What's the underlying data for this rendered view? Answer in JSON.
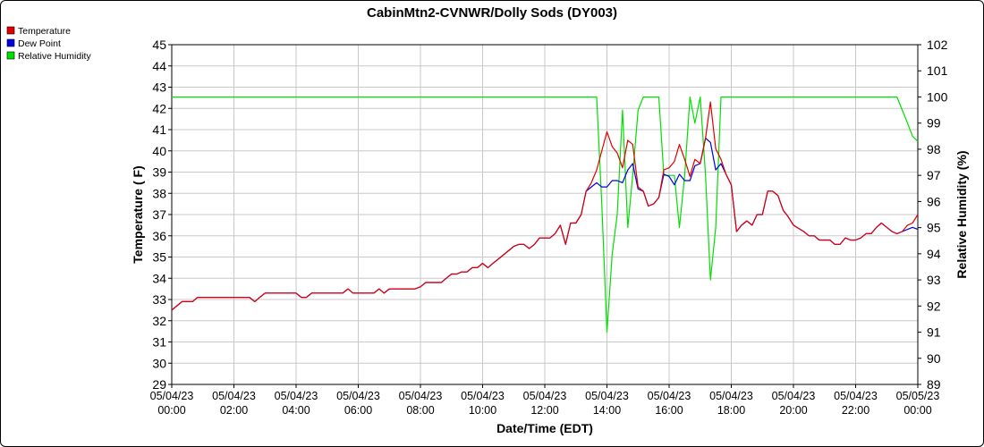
{
  "chart_data": {
    "type": "line",
    "title": "CabinMtn2-CVNWR/Dolly Sods (DY003)",
    "xlabel": "Date/Time (EDT)",
    "ylabel": "Temperature ( F)",
    "y2label": "Relative Humidity (%)",
    "x_range_hours": [
      0,
      24
    ],
    "ylim": [
      29,
      45
    ],
    "y2lim": [
      89,
      102
    ],
    "grid": true,
    "legend_position": "top-left",
    "x_ticks": [
      {
        "h": 0,
        "date": "05/04/23",
        "time": "00:00"
      },
      {
        "h": 2,
        "date": "05/04/23",
        "time": "02:00"
      },
      {
        "h": 4,
        "date": "05/04/23",
        "time": "04:00"
      },
      {
        "h": 6,
        "date": "05/04/23",
        "time": "06:00"
      },
      {
        "h": 8,
        "date": "05/04/23",
        "time": "08:00"
      },
      {
        "h": 10,
        "date": "05/04/23",
        "time": "10:00"
      },
      {
        "h": 12,
        "date": "05/04/23",
        "time": "12:00"
      },
      {
        "h": 14,
        "date": "05/04/23",
        "time": "14:00"
      },
      {
        "h": 16,
        "date": "05/04/23",
        "time": "16:00"
      },
      {
        "h": 18,
        "date": "05/04/23",
        "time": "18:00"
      },
      {
        "h": 20,
        "date": "05/04/23",
        "time": "20:00"
      },
      {
        "h": 22,
        "date": "05/04/23",
        "time": "22:00"
      },
      {
        "h": 24,
        "date": "05/05/23",
        "time": "00:00"
      }
    ],
    "y_ticks": [
      "29",
      "30",
      "31",
      "32",
      "33",
      "34",
      "35",
      "36",
      "37",
      "38",
      "39",
      "40",
      "41",
      "42",
      "43",
      "44",
      "45"
    ],
    "y2_ticks": [
      "89",
      "90",
      "91",
      "92",
      "93",
      "94",
      "95",
      "96",
      "97",
      "98",
      "99",
      "100",
      "101",
      "102"
    ],
    "series": [
      {
        "name": "Temperature",
        "color": "#e00000",
        "axis": "left",
        "points": [
          [
            0,
            32.5
          ],
          [
            0.33,
            32.9
          ],
          [
            0.67,
            32.9
          ],
          [
            0.83,
            33.1
          ],
          [
            2,
            33.1
          ],
          [
            2.17,
            33.1
          ],
          [
            2.5,
            33.1
          ],
          [
            2.67,
            32.9
          ],
          [
            2.83,
            33.1
          ],
          [
            3,
            33.3
          ],
          [
            3.5,
            33.3
          ],
          [
            4,
            33.3
          ],
          [
            4.17,
            33.1
          ],
          [
            4.33,
            33.1
          ],
          [
            4.5,
            33.3
          ],
          [
            5,
            33.3
          ],
          [
            5.5,
            33.3
          ],
          [
            5.67,
            33.5
          ],
          [
            5.83,
            33.3
          ],
          [
            6,
            33.3
          ],
          [
            6.5,
            33.3
          ],
          [
            6.67,
            33.5
          ],
          [
            6.83,
            33.3
          ],
          [
            7,
            33.5
          ],
          [
            7.5,
            33.5
          ],
          [
            7.83,
            33.5
          ],
          [
            8,
            33.6
          ],
          [
            8.17,
            33.8
          ],
          [
            8.5,
            33.8
          ],
          [
            8.67,
            33.8
          ],
          [
            8.83,
            34
          ],
          [
            9,
            34.2
          ],
          [
            9.17,
            34.2
          ],
          [
            9.33,
            34.3
          ],
          [
            9.5,
            34.3
          ],
          [
            9.67,
            34.5
          ],
          [
            9.83,
            34.5
          ],
          [
            10,
            34.7
          ],
          [
            10.17,
            34.5
          ],
          [
            10.33,
            34.7
          ],
          [
            10.67,
            35.1
          ],
          [
            11,
            35.5
          ],
          [
            11.17,
            35.6
          ],
          [
            11.33,
            35.6
          ],
          [
            11.5,
            35.4
          ],
          [
            11.67,
            35.6
          ],
          [
            11.83,
            35.9
          ],
          [
            12,
            35.9
          ],
          [
            12.17,
            35.9
          ],
          [
            12.33,
            36.1
          ],
          [
            12.5,
            36.5
          ],
          [
            12.67,
            35.6
          ],
          [
            12.83,
            36.6
          ],
          [
            13,
            36.6
          ],
          [
            13.17,
            37
          ],
          [
            13.33,
            38.1
          ],
          [
            13.5,
            38.5
          ],
          [
            13.67,
            39.1
          ],
          [
            14,
            40.9
          ],
          [
            14.17,
            40.2
          ],
          [
            14.33,
            39.9
          ],
          [
            14.5,
            39.2
          ],
          [
            14.67,
            40.5
          ],
          [
            14.83,
            40.3
          ],
          [
            15,
            38.3
          ],
          [
            15.17,
            38.1
          ],
          [
            15.33,
            37.4
          ],
          [
            15.5,
            37.5
          ],
          [
            15.67,
            37.8
          ],
          [
            15.83,
            39.1
          ],
          [
            16,
            39.2
          ],
          [
            16.17,
            39.5
          ],
          [
            16.33,
            40.3
          ],
          [
            16.5,
            39.6
          ],
          [
            16.67,
            38.8
          ],
          [
            16.83,
            39.6
          ],
          [
            17,
            39.4
          ],
          [
            17.17,
            40.6
          ],
          [
            17.33,
            42.3
          ],
          [
            17.5,
            40.1
          ],
          [
            17.67,
            39.6
          ],
          [
            17.83,
            38.9
          ],
          [
            18,
            38.4
          ],
          [
            18.17,
            36.2
          ],
          [
            18.33,
            36.5
          ],
          [
            18.5,
            36.7
          ],
          [
            18.67,
            36.5
          ],
          [
            18.83,
            37
          ],
          [
            19,
            37
          ],
          [
            19.17,
            38.1
          ],
          [
            19.33,
            38.1
          ],
          [
            19.5,
            37.9
          ],
          [
            19.67,
            37.2
          ],
          [
            19.83,
            36.9
          ],
          [
            20,
            36.5
          ],
          [
            20.33,
            36.2
          ],
          [
            20.5,
            36
          ],
          [
            20.67,
            36
          ],
          [
            20.83,
            35.8
          ],
          [
            21,
            35.8
          ],
          [
            21.17,
            35.8
          ],
          [
            21.33,
            35.6
          ],
          [
            21.5,
            35.6
          ],
          [
            21.67,
            35.9
          ],
          [
            21.83,
            35.8
          ],
          [
            22,
            35.8
          ],
          [
            22.17,
            35.9
          ],
          [
            22.33,
            36.1
          ],
          [
            22.5,
            36.1
          ],
          [
            22.67,
            36.4
          ],
          [
            22.83,
            36.6
          ],
          [
            23,
            36.4
          ],
          [
            23.17,
            36.2
          ],
          [
            23.33,
            36.1
          ],
          [
            23.5,
            36.2
          ],
          [
            23.67,
            36.5
          ],
          [
            23.83,
            36.6
          ],
          [
            24,
            37
          ]
        ]
      },
      {
        "name": "Dew Point",
        "color": "#0000e0",
        "axis": "left",
        "points": [
          [
            0,
            32.5
          ],
          [
            0.33,
            32.9
          ],
          [
            0.67,
            32.9
          ],
          [
            0.83,
            33.1
          ],
          [
            2,
            33.1
          ],
          [
            2.17,
            33.1
          ],
          [
            2.5,
            33.1
          ],
          [
            2.67,
            32.9
          ],
          [
            2.83,
            33.1
          ],
          [
            3,
            33.3
          ],
          [
            3.5,
            33.3
          ],
          [
            4,
            33.3
          ],
          [
            4.17,
            33.1
          ],
          [
            4.33,
            33.1
          ],
          [
            4.5,
            33.3
          ],
          [
            5,
            33.3
          ],
          [
            5.5,
            33.3
          ],
          [
            5.67,
            33.5
          ],
          [
            5.83,
            33.3
          ],
          [
            6,
            33.3
          ],
          [
            6.5,
            33.3
          ],
          [
            6.67,
            33.5
          ],
          [
            6.83,
            33.3
          ],
          [
            7,
            33.5
          ],
          [
            7.5,
            33.5
          ],
          [
            7.83,
            33.5
          ],
          [
            8,
            33.6
          ],
          [
            8.17,
            33.8
          ],
          [
            8.5,
            33.8
          ],
          [
            8.67,
            33.8
          ],
          [
            8.83,
            34
          ],
          [
            9,
            34.2
          ],
          [
            9.17,
            34.2
          ],
          [
            9.33,
            34.3
          ],
          [
            9.5,
            34.3
          ],
          [
            9.67,
            34.5
          ],
          [
            9.83,
            34.5
          ],
          [
            10,
            34.7
          ],
          [
            10.17,
            34.5
          ],
          [
            10.33,
            34.7
          ],
          [
            10.67,
            35.1
          ],
          [
            11,
            35.5
          ],
          [
            11.17,
            35.6
          ],
          [
            11.33,
            35.6
          ],
          [
            11.5,
            35.4
          ],
          [
            11.67,
            35.6
          ],
          [
            11.83,
            35.9
          ],
          [
            12,
            35.9
          ],
          [
            12.17,
            35.9
          ],
          [
            12.33,
            36.1
          ],
          [
            12.5,
            36.5
          ],
          [
            12.67,
            35.6
          ],
          [
            12.83,
            36.6
          ],
          [
            13,
            36.6
          ],
          [
            13.17,
            37
          ],
          [
            13.33,
            38.1
          ],
          [
            13.5,
            38.3
          ],
          [
            13.67,
            38.5
          ],
          [
            13.83,
            38.3
          ],
          [
            14,
            38.3
          ],
          [
            14.17,
            38.6
          ],
          [
            14.33,
            38.6
          ],
          [
            14.5,
            38.5
          ],
          [
            14.67,
            39.1
          ],
          [
            14.83,
            39.4
          ],
          [
            15,
            38.2
          ],
          [
            15.17,
            38.1
          ],
          [
            15.33,
            37.4
          ],
          [
            15.5,
            37.5
          ],
          [
            15.67,
            37.8
          ],
          [
            15.83,
            38.9
          ],
          [
            16,
            38.8
          ],
          [
            16.17,
            38.4
          ],
          [
            16.33,
            38.9
          ],
          [
            16.5,
            38.6
          ],
          [
            16.67,
            38.6
          ],
          [
            16.83,
            39.3
          ],
          [
            17,
            39.4
          ],
          [
            17.17,
            40.6
          ],
          [
            17.33,
            40.4
          ],
          [
            17.5,
            39.1
          ],
          [
            17.67,
            39.4
          ],
          [
            17.83,
            38.9
          ],
          [
            18,
            38.4
          ],
          [
            18.17,
            36.2
          ],
          [
            18.33,
            36.5
          ],
          [
            18.5,
            36.7
          ],
          [
            18.67,
            36.5
          ],
          [
            18.83,
            37
          ],
          [
            19,
            37
          ],
          [
            19.17,
            38.1
          ],
          [
            19.33,
            38.1
          ],
          [
            19.5,
            37.9
          ],
          [
            19.67,
            37.2
          ],
          [
            19.83,
            36.9
          ],
          [
            20,
            36.5
          ],
          [
            20.33,
            36.2
          ],
          [
            20.5,
            36
          ],
          [
            20.67,
            36
          ],
          [
            20.83,
            35.8
          ],
          [
            21,
            35.8
          ],
          [
            21.17,
            35.8
          ],
          [
            21.33,
            35.6
          ],
          [
            21.5,
            35.6
          ],
          [
            21.67,
            35.9
          ],
          [
            21.83,
            35.8
          ],
          [
            22,
            35.8
          ],
          [
            22.17,
            35.9
          ],
          [
            22.33,
            36.1
          ],
          [
            22.5,
            36.1
          ],
          [
            22.67,
            36.4
          ],
          [
            22.83,
            36.6
          ],
          [
            23,
            36.4
          ],
          [
            23.17,
            36.2
          ],
          [
            23.33,
            36.1
          ],
          [
            23.5,
            36.2
          ],
          [
            23.67,
            36.3
          ],
          [
            23.83,
            36.4
          ],
          [
            24,
            36.3
          ]
        ]
      },
      {
        "name": "Relative Humidity",
        "color": "#00e000",
        "axis": "right",
        "points": [
          [
            0,
            100
          ],
          [
            13.67,
            100
          ],
          [
            13.83,
            96
          ],
          [
            14,
            91
          ],
          [
            14.17,
            94
          ],
          [
            14.33,
            95.5
          ],
          [
            14.5,
            99.5
          ],
          [
            14.67,
            95
          ],
          [
            14.83,
            97
          ],
          [
            15,
            99.5
          ],
          [
            15.17,
            100
          ],
          [
            15.5,
            100
          ],
          [
            15.67,
            100
          ],
          [
            15.83,
            97
          ],
          [
            16,
            97
          ],
          [
            16.17,
            97
          ],
          [
            16.33,
            95
          ],
          [
            16.5,
            97
          ],
          [
            16.67,
            100
          ],
          [
            16.83,
            99
          ],
          [
            17,
            100
          ],
          [
            17.17,
            97
          ],
          [
            17.33,
            93
          ],
          [
            17.5,
            95
          ],
          [
            17.67,
            100
          ],
          [
            18,
            100
          ],
          [
            20,
            100
          ],
          [
            22,
            100
          ],
          [
            23.33,
            100
          ],
          [
            23.5,
            99.5
          ],
          [
            23.67,
            99
          ],
          [
            23.83,
            98.5
          ],
          [
            24,
            98.3
          ]
        ]
      }
    ]
  }
}
